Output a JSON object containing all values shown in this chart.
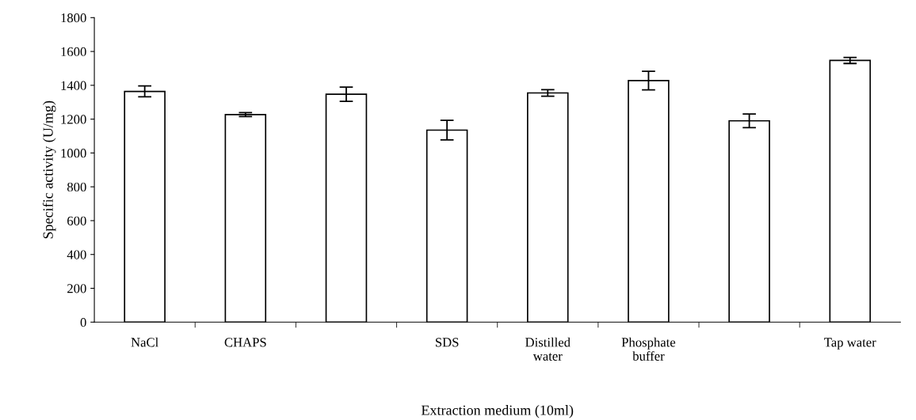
{
  "chart_data": {
    "type": "bar",
    "xlabel": "Extraction medium (10ml)",
    "ylabel": "Specific activity (U/mg)",
    "categories": [
      "NaCl",
      "CHAPS",
      null,
      "SDS",
      "Distilled\nwater",
      "Phosphate\nbuffer",
      null,
      "Tap water"
    ],
    "values": [
      1364,
      1227,
      1347,
      1135,
      1355,
      1428,
      1190,
      1547
    ],
    "errors": [
      32,
      12,
      42,
      58,
      19,
      55,
      40,
      18
    ],
    "color": "#ffffff",
    "ylim": [
      0,
      1800
    ],
    "yticks": [
      0,
      200,
      400,
      600,
      800,
      1000,
      1200,
      1400,
      1600,
      1800
    ],
    "grid": false,
    "legend": false
  }
}
